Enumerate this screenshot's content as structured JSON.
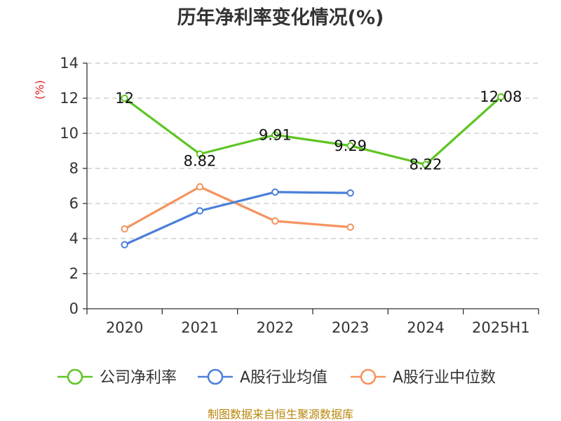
{
  "chart_data": {
    "type": "line",
    "title": "历年净利率变化情况(%)",
    "ylabel": "(%)",
    "xlabel": "",
    "categories": [
      "2020",
      "2021",
      "2022",
      "2023",
      "2024",
      "2025H1"
    ],
    "ylim": [
      0,
      14
    ],
    "yticks": [
      0,
      2,
      4,
      6,
      8,
      10,
      12,
      14
    ],
    "grid": true,
    "legend_position": "bottom",
    "series": [
      {
        "name": "公司净利率",
        "color": "#5ec523",
        "values": [
          12,
          8.82,
          9.91,
          9.29,
          8.22,
          12.08
        ],
        "labels": [
          "12",
          "8.82",
          "9.91",
          "9.29",
          "8.22",
          "12.08"
        ]
      },
      {
        "name": "A股行业均值",
        "color": "#4b7fd8",
        "values": [
          3.65,
          5.58,
          6.65,
          6.6,
          null,
          null
        ]
      },
      {
        "name": "A股行业中位数",
        "color": "#f4935f",
        "values": [
          4.55,
          6.95,
          5.0,
          4.65,
          null,
          null
        ]
      }
    ]
  },
  "source": "制图数据来自恒生聚源数据库"
}
